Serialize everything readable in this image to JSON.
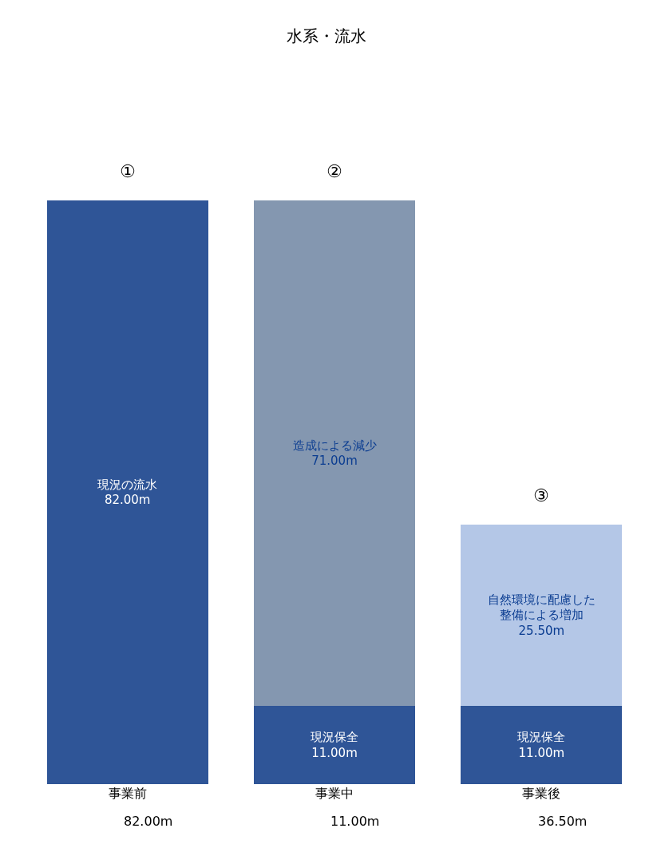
{
  "chart_data": {
    "type": "bar",
    "title": "水系・流水",
    "stacked": true,
    "legend": false,
    "tick_labels": "x",
    "categories": [
      "事業前",
      "事業中",
      "事業後"
    ],
    "series": [
      {
        "name": "現況の流水",
        "color": "#2f5597",
        "values": [
          82,
          null,
          null
        ],
        "value_labels": [
          "82.00m",
          null,
          null
        ]
      },
      {
        "name": "現況保全",
        "color": "#2f5597",
        "values": [
          null,
          11,
          11
        ],
        "value_labels": [
          null,
          "11.00m",
          "11.00m"
        ]
      },
      {
        "name": "造成による減少",
        "color": "#8497b0",
        "values": [
          null,
          71,
          null
        ],
        "value_labels": [
          null,
          "71.00m",
          null
        ]
      },
      {
        "name": "自然環境に配慮した整備による増加",
        "color": "#b4c7e7",
        "values": [
          null,
          null,
          25.5
        ],
        "value_labels": [
          null,
          null,
          "25.50m"
        ]
      }
    ],
    "annotations": [
      "82.00m",
      "11.00m",
      "36.50m",
      {
        "text": "①",
        "x": "事業前",
        "y": 82
      },
      {
        "text": "②",
        "x": "事業中",
        "y": 82
      },
      {
        "text": "③",
        "x": "事業後",
        "y": 36.5
      }
    ]
  }
}
